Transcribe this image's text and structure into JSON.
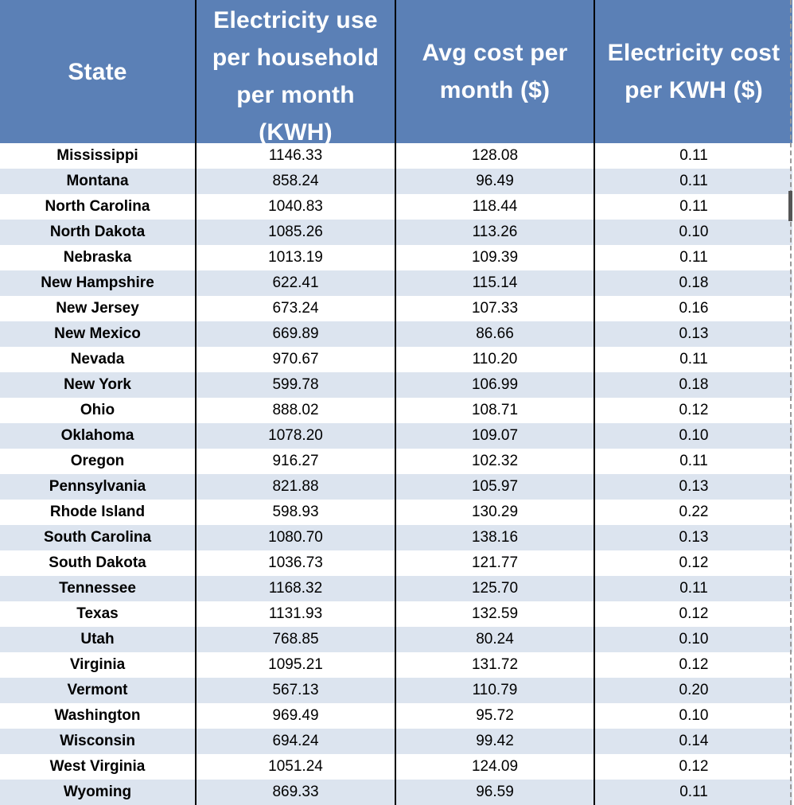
{
  "table": {
    "headers": [
      {
        "lines": [
          "State"
        ]
      },
      {
        "lines": [
          "Electricity use",
          "per household",
          "per month",
          "(KWH)"
        ]
      },
      {
        "lines": [
          "Avg cost per",
          "month ($)"
        ]
      },
      {
        "lines": [
          "Electricity cost",
          "per KWH ($)"
        ]
      }
    ],
    "rows": [
      {
        "state": "Mississippi",
        "kwh": "1146.33",
        "cost": "128.08",
        "rate": "0.11"
      },
      {
        "state": "Montana",
        "kwh": "858.24",
        "cost": "96.49",
        "rate": "0.11"
      },
      {
        "state": "North Carolina",
        "kwh": "1040.83",
        "cost": "118.44",
        "rate": "0.11"
      },
      {
        "state": "North Dakota",
        "kwh": "1085.26",
        "cost": "113.26",
        "rate": "0.10"
      },
      {
        "state": "Nebraska",
        "kwh": "1013.19",
        "cost": "109.39",
        "rate": "0.11"
      },
      {
        "state": "New Hampshire",
        "kwh": "622.41",
        "cost": "115.14",
        "rate": "0.18"
      },
      {
        "state": "New Jersey",
        "kwh": "673.24",
        "cost": "107.33",
        "rate": "0.16"
      },
      {
        "state": "New Mexico",
        "kwh": "669.89",
        "cost": "86.66",
        "rate": "0.13"
      },
      {
        "state": "Nevada",
        "kwh": "970.67",
        "cost": "110.20",
        "rate": "0.11"
      },
      {
        "state": "New York",
        "kwh": "599.78",
        "cost": "106.99",
        "rate": "0.18"
      },
      {
        "state": "Ohio",
        "kwh": "888.02",
        "cost": "108.71",
        "rate": "0.12"
      },
      {
        "state": "Oklahoma",
        "kwh": "1078.20",
        "cost": "109.07",
        "rate": "0.10"
      },
      {
        "state": "Oregon",
        "kwh": "916.27",
        "cost": "102.32",
        "rate": "0.11"
      },
      {
        "state": "Pennsylvania",
        "kwh": "821.88",
        "cost": "105.97",
        "rate": "0.13"
      },
      {
        "state": "Rhode Island",
        "kwh": "598.93",
        "cost": "130.29",
        "rate": "0.22"
      },
      {
        "state": "South Carolina",
        "kwh": "1080.70",
        "cost": "138.16",
        "rate": "0.13"
      },
      {
        "state": "South Dakota",
        "kwh": "1036.73",
        "cost": "121.77",
        "rate": "0.12"
      },
      {
        "state": "Tennessee",
        "kwh": "1168.32",
        "cost": "125.70",
        "rate": "0.11"
      },
      {
        "state": "Texas",
        "kwh": "1131.93",
        "cost": "132.59",
        "rate": "0.12"
      },
      {
        "state": "Utah",
        "kwh": "768.85",
        "cost": "80.24",
        "rate": "0.10"
      },
      {
        "state": "Virginia",
        "kwh": "1095.21",
        "cost": "131.72",
        "rate": "0.12"
      },
      {
        "state": "Vermont",
        "kwh": "567.13",
        "cost": "110.79",
        "rate": "0.20"
      },
      {
        "state": "Washington",
        "kwh": "969.49",
        "cost": "95.72",
        "rate": "0.10"
      },
      {
        "state": "Wisconsin",
        "kwh": "694.24",
        "cost": "99.42",
        "rate": "0.14"
      },
      {
        "state": "West Virginia",
        "kwh": "1051.24",
        "cost": "124.09",
        "rate": "0.12"
      },
      {
        "state": "Wyoming",
        "kwh": "869.33",
        "cost": "96.59",
        "rate": "0.11"
      }
    ]
  },
  "colors": {
    "header_bg": "#5b80b6",
    "header_text": "#ffffff",
    "stripe": "#dce4ef"
  }
}
